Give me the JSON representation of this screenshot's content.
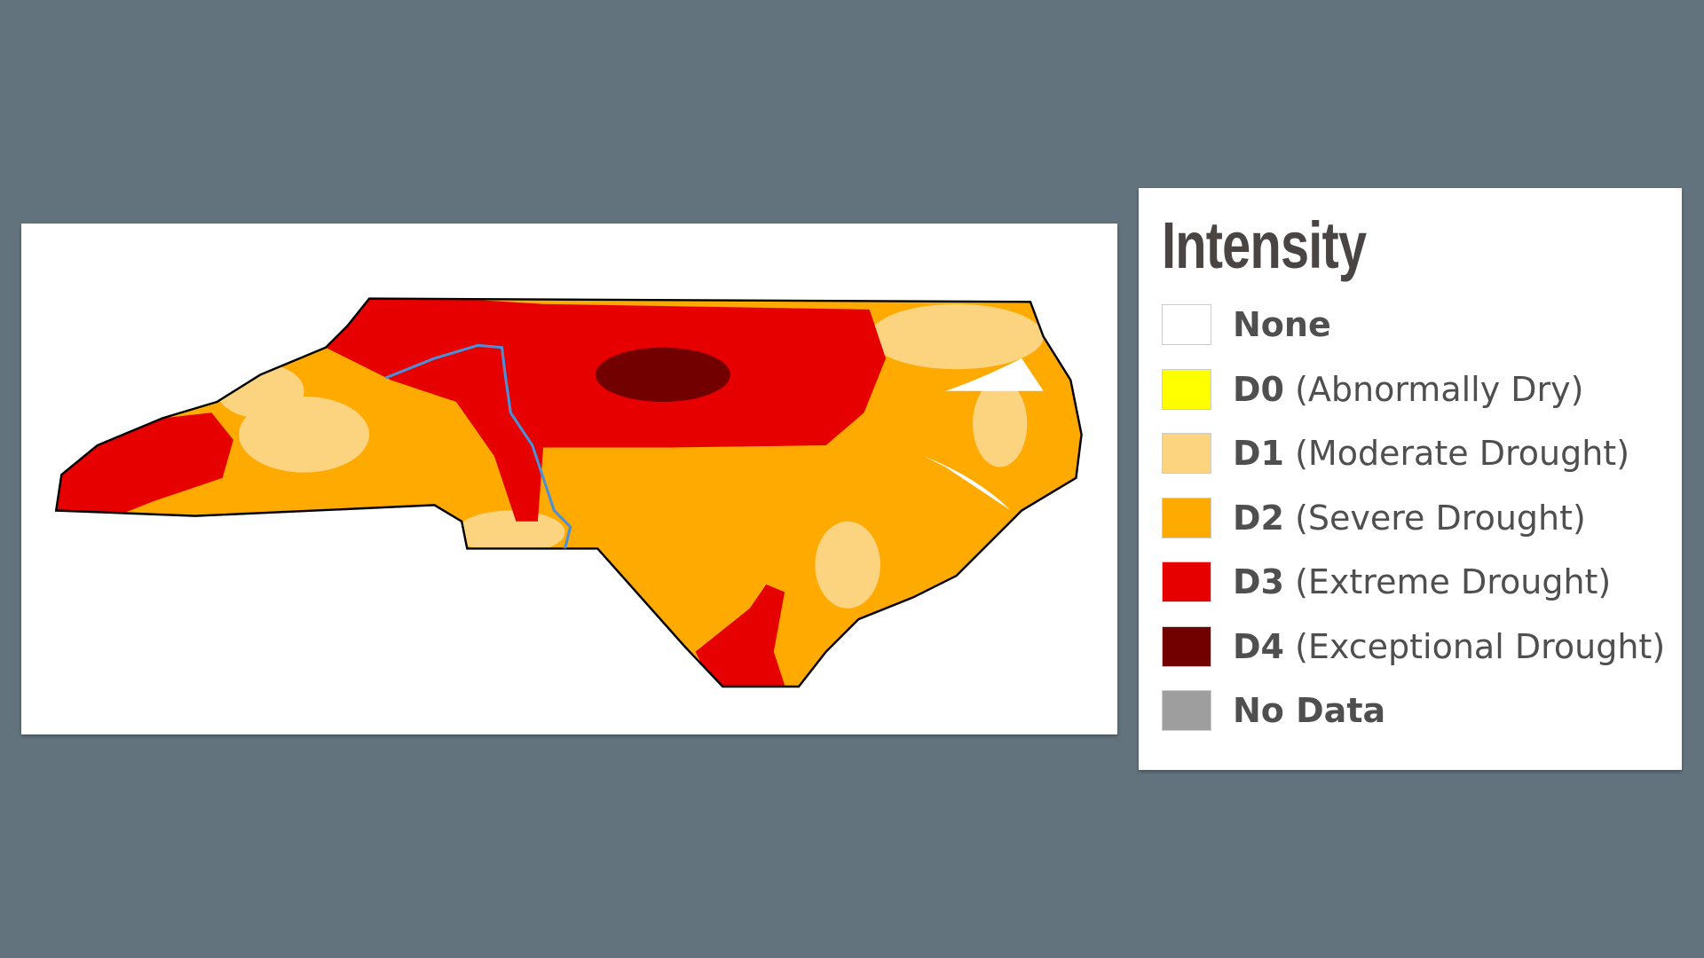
{
  "legend": {
    "title": "Intensity",
    "items": [
      {
        "code": "None",
        "color": "#ffffff"
      },
      {
        "code": "D0",
        "label": "(Abnormally Dry)",
        "color": "#ffff00"
      },
      {
        "code": "D1",
        "label": "(Moderate Drought)",
        "color": "#fcd37f"
      },
      {
        "code": "D2",
        "label": "(Severe Drought)",
        "color": "#ffaa00"
      },
      {
        "code": "D3",
        "label": "(Extreme Drought)",
        "color": "#e60000"
      },
      {
        "code": "D4",
        "label": "(Exceptional Drought)",
        "color": "#730000"
      },
      {
        "code": "No Data",
        "color": "#9e9e9e"
      }
    ]
  }
}
